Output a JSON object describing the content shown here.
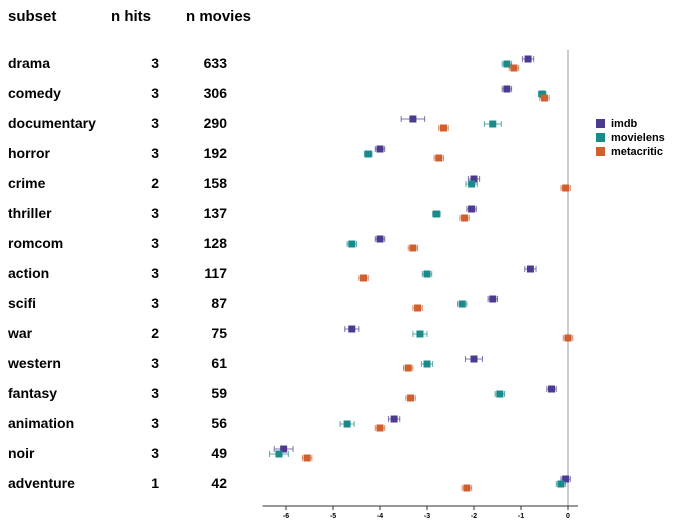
{
  "headers": {
    "subset": "subset",
    "n_hits": "n hits",
    "n_movies": "n movies"
  },
  "chart_data": {
    "type": "scatter",
    "orientation": "horizontal-dot-plot-with-error-bars",
    "xlim": [
      -6.5,
      0.2
    ],
    "xticks": [
      -6,
      -5,
      -4,
      -3,
      -2,
      -1,
      0
    ],
    "xtick_labels": [
      "-6",
      "-5",
      "-4",
      "-3",
      "-2",
      "-1",
      "0"
    ],
    "reference_line_x": 0,
    "grid": false,
    "legend_position": "right",
    "categories": [
      "drama",
      "comedy",
      "documentary",
      "horror",
      "crime",
      "thriller",
      "romcom",
      "action",
      "scifi",
      "war",
      "western",
      "fantasy",
      "animation",
      "noir",
      "adventure"
    ],
    "n_hits": [
      3,
      3,
      3,
      3,
      2,
      3,
      3,
      3,
      3,
      2,
      3,
      3,
      3,
      3,
      1
    ],
    "n_movies": [
      633,
      306,
      290,
      192,
      158,
      137,
      128,
      117,
      87,
      75,
      61,
      59,
      56,
      49,
      42
    ],
    "series": [
      {
        "name": "imdb",
        "color": "#4b3a8f",
        "values": [
          -0.85,
          -1.3,
          -3.3,
          -4.0,
          -2.0,
          -2.05,
          -4.0,
          -0.8,
          -1.6,
          -4.6,
          -2.0,
          -0.35,
          -3.7,
          -6.05,
          -0.05
        ],
        "errors": [
          0.12,
          0.1,
          0.25,
          0.1,
          0.12,
          0.1,
          0.1,
          0.12,
          0.1,
          0.15,
          0.18,
          0.1,
          0.12,
          0.2,
          0.1
        ]
      },
      {
        "name": "movielens",
        "color": "#1b8a8a",
        "values": [
          -1.3,
          -0.55,
          -1.6,
          -4.25,
          -2.05,
          -2.8,
          -4.6,
          -3.0,
          -2.25,
          -3.15,
          -3.0,
          -1.45,
          -4.7,
          -6.15,
          -0.15
        ],
        "errors": [
          0.1,
          0.08,
          0.18,
          0.08,
          0.12,
          0.08,
          0.1,
          0.1,
          0.1,
          0.15,
          0.12,
          0.1,
          0.15,
          0.2,
          0.1
        ]
      },
      {
        "name": "metacritic",
        "color": "#cf5f2e",
        "values": [
          -1.15,
          -0.5,
          -2.65,
          -2.75,
          -0.05,
          -2.2,
          -3.3,
          -4.35,
          -3.2,
          0.0,
          -3.4,
          -3.35,
          -4.0,
          -5.55,
          -2.15
        ]
      }
    ]
  }
}
